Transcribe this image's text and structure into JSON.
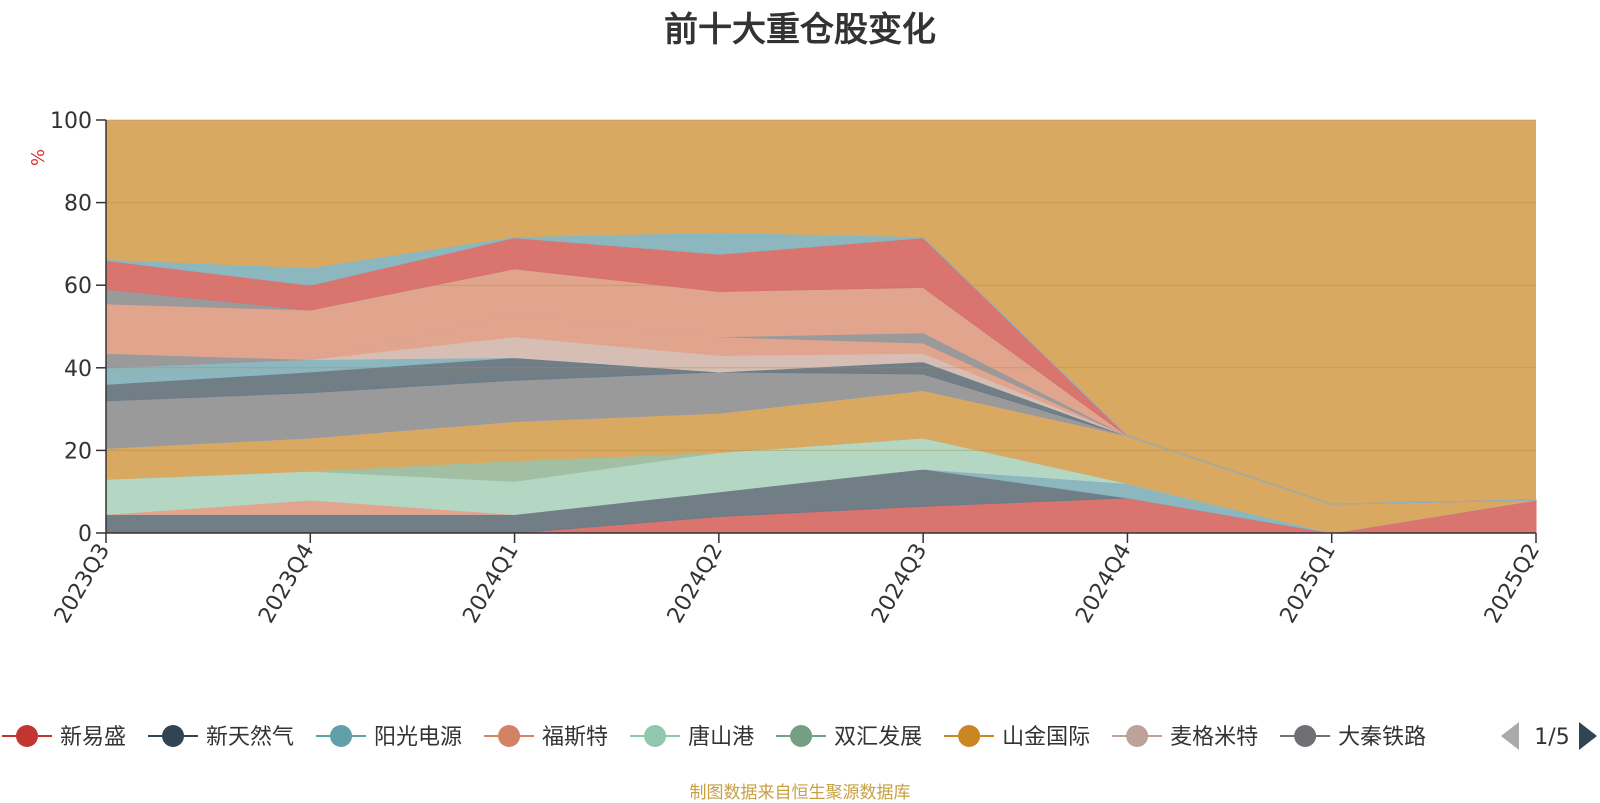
{
  "chart_data": {
    "type": "area",
    "stacked": true,
    "title": "前十大重仓股变化",
    "ylabel": "%",
    "ylim": [
      0,
      100
    ],
    "yticks": [
      0,
      20,
      40,
      60,
      80,
      100
    ],
    "grid": true,
    "legend_position": "bottom",
    "categories": [
      "2023Q3",
      "2023Q4",
      "2024Q1",
      "2024Q2",
      "2024Q3",
      "2024Q4",
      "2025Q1",
      "2025Q2"
    ],
    "series": [
      {
        "name": "新易盛",
        "color": "#d9716f",
        "values": [
          0,
          0,
          0,
          4,
          6.5,
          8.5,
          0,
          8
        ]
      },
      {
        "name": "新天然气",
        "color": "#6b7b88",
        "values": [
          4.5,
          4.5,
          4.5,
          6,
          9,
          0,
          0,
          0
        ]
      },
      {
        "name": "阳光电源",
        "color": "#88b7c4",
        "values": [
          0,
          0,
          0,
          0,
          0,
          3.5,
          0,
          0
        ]
      },
      {
        "name": "福斯特",
        "color": "#e2a48f",
        "values": [
          0,
          3.5,
          0,
          0,
          0,
          0,
          0,
          0
        ]
      },
      {
        "name": "唐山港",
        "color": "#b1d9c8",
        "values": [
          8.5,
          7,
          8,
          9.5,
          7.5,
          0,
          0,
          0
        ]
      },
      {
        "name": "双汇发展",
        "color": "#9fc0a6",
        "values": [
          0,
          0,
          5,
          0,
          0,
          0,
          0,
          0
        ]
      },
      {
        "name": "山金国际",
        "color": "#d9a962",
        "values": [
          7.5,
          8,
          9.5,
          9.5,
          11.5,
          11.5,
          7,
          0
        ]
      },
      {
        "name": "麦格米特",
        "color": "#d7bfb8",
        "values": [
          0,
          0,
          0,
          0,
          0,
          0,
          0,
          0
        ]
      },
      {
        "name": "大秦铁路",
        "color": "#98999d",
        "values": [
          11.5,
          11,
          10,
          10,
          4,
          0,
          0,
          0
        ]
      }
    ],
    "background_series": {
      "color": "#d9a962",
      "value": 100
    },
    "upper_bands": [
      {
        "color": "#6b7b88",
        "values": [
          4,
          5,
          5.5,
          0,
          3,
          0,
          0,
          0
        ]
      },
      {
        "color": "#88b7c4",
        "values": [
          4,
          3,
          0,
          0,
          0,
          0,
          0,
          0
        ]
      },
      {
        "color": "#d7bfb8",
        "values": [
          0,
          0,
          5,
          4,
          2,
          0,
          0,
          0
        ]
      },
      {
        "color": "#e2a48f",
        "values": [
          0,
          0,
          5.5,
          4.5,
          2.5,
          0,
          0,
          0
        ]
      },
      {
        "color": "#98999d",
        "values": [
          3.5,
          0,
          0,
          0,
          2.5,
          0,
          0,
          0
        ]
      },
      {
        "color": "#e2a48f",
        "values": [
          12,
          12,
          11,
          11,
          11,
          0,
          0,
          0
        ]
      },
      {
        "color": "#98999d",
        "values": [
          3.5,
          0,
          0,
          0,
          0,
          0,
          0,
          0
        ]
      },
      {
        "color": "#d9716f",
        "values": [
          7,
          6,
          7.5,
          9,
          12,
          0,
          0,
          0
        ]
      },
      {
        "color": "#88b7c4",
        "values": [
          0,
          4,
          0,
          5,
          0,
          0,
          0,
          0
        ]
      }
    ],
    "legend": {
      "page": "1/5"
    },
    "source": "制图数据来自恒生聚源数据库"
  }
}
